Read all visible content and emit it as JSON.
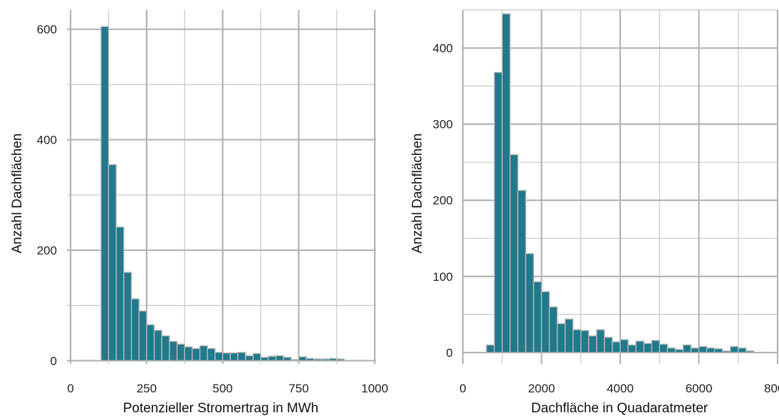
{
  "chart_data": [
    {
      "type": "bar",
      "xlabel": "Potenzieller Stromertrag in MWh",
      "ylabel": "Anzahl Dachflächen",
      "xlim": [
        -12,
        1004
      ],
      "ylim": [
        -6,
        635
      ],
      "x_ticks": [
        0,
        250,
        500,
        750,
        1000
      ],
      "y_ticks": [
        0,
        200,
        400,
        600
      ],
      "bin_start": 100,
      "bin_width": 25,
      "values": [
        605,
        355,
        242,
        160,
        112,
        90,
        65,
        55,
        45,
        35,
        30,
        25,
        22,
        27,
        22,
        15,
        14,
        14,
        15,
        9,
        13,
        6,
        8,
        9,
        6,
        2,
        7,
        4,
        3,
        3,
        4,
        3
      ]
    },
    {
      "type": "bar",
      "xlabel": "Dachfläche in Quadaratmeter",
      "ylabel": "Anzahl Dachflächen",
      "xlim": [
        0,
        8000
      ],
      "ylim": [
        -15,
        450
      ],
      "x_ticks": [
        0,
        2000,
        4000,
        6000,
        8000
      ],
      "y_ticks": [
        0,
        100,
        200,
        300,
        400
      ],
      "bin_start": 600,
      "bin_width": 200,
      "values": [
        10,
        368,
        445,
        260,
        213,
        130,
        93,
        80,
        60,
        38,
        44,
        30,
        29,
        22,
        30,
        20,
        14,
        17,
        10,
        15,
        12,
        16,
        11,
        6,
        4,
        10,
        6,
        8,
        6,
        5,
        2,
        8,
        6,
        2
      ]
    }
  ]
}
